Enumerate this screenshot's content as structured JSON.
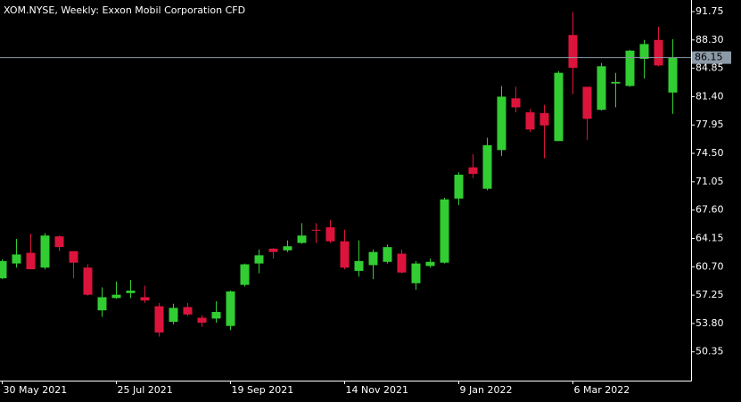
{
  "chart_data": {
    "type": "candlestick",
    "title": "XOM.NYSE, Weekly:  Exxon Mobil Corporation CFD",
    "categories": [
      "30 May 2021",
      null,
      null,
      null,
      null,
      null,
      null,
      null,
      "25 Jul 2021",
      null,
      null,
      null,
      null,
      null,
      null,
      null,
      "19 Sep 2021",
      null,
      null,
      null,
      null,
      null,
      null,
      null,
      "14 Nov 2021",
      null,
      null,
      null,
      null,
      null,
      null,
      null,
      "9 Jan 2022",
      null,
      null,
      null,
      null,
      null,
      null,
      null,
      "6 Mar 2022",
      null,
      null,
      null,
      null,
      null,
      null,
      null
    ],
    "open": [
      59.3,
      61.1,
      62.4,
      60.6,
      64.4,
      62.6,
      60.6,
      55.4,
      56.9,
      57.5,
      57.0,
      55.9,
      54.0,
      55.8,
      54.5,
      54.4,
      53.5,
      58.5,
      61.1,
      62.9,
      62.7,
      63.6,
      65.2,
      65.5,
      63.8,
      60.2,
      60.9,
      61.3,
      62.3,
      58.7,
      60.8,
      61.2,
      69.0,
      72.8,
      70.2,
      74.9,
      81.2,
      79.5,
      79.4,
      76.0,
      88.9,
      82.6,
      79.8,
      83.0,
      82.7,
      86.0,
      88.3,
      81.9
    ],
    "high": [
      61.6,
      64.1,
      64.7,
      64.8,
      64.5,
      62.6,
      61.0,
      58.2,
      58.9,
      59.1,
      58.4,
      56.3,
      56.2,
      56.3,
      54.8,
      56.5,
      57.8,
      61.1,
      62.8,
      63.0,
      63.9,
      66.0,
      66.0,
      66.4,
      65.2,
      63.9,
      62.8,
      63.4,
      62.8,
      61.4,
      61.7,
      69.1,
      72.2,
      74.4,
      76.4,
      82.7,
      82.6,
      79.9,
      80.4,
      84.5,
      91.7,
      82.6,
      85.5,
      84.3,
      87.1,
      88.3,
      89.9,
      88.4
    ],
    "low": [
      59.2,
      60.6,
      60.4,
      60.4,
      62.6,
      59.3,
      57.2,
      54.6,
      56.8,
      56.9,
      56.3,
      52.2,
      53.7,
      54.7,
      53.4,
      53.9,
      53.0,
      58.3,
      59.9,
      61.7,
      62.5,
      63.5,
      63.6,
      63.6,
      60.4,
      59.5,
      59.2,
      61.1,
      59.9,
      57.9,
      60.6,
      61.1,
      68.2,
      71.5,
      70.0,
      74.2,
      79.5,
      77.1,
      73.9,
      76.0,
      81.7,
      76.1,
      79.7,
      80.1,
      82.6,
      83.6,
      85.1,
      79.3
    ],
    "close": [
      61.4,
      62.2,
      60.4,
      64.5,
      63.1,
      61.2,
      57.3,
      57.0,
      57.3,
      57.8,
      56.6,
      52.7,
      55.7,
      54.9,
      53.9,
      55.2,
      57.7,
      61.0,
      62.1,
      62.5,
      63.2,
      64.5,
      65.1,
      63.8,
      60.6,
      61.4,
      62.5,
      63.1,
      60.0,
      61.1,
      61.3,
      68.9,
      71.9,
      72.0,
      75.5,
      81.4,
      80.1,
      77.4,
      77.9,
      84.3,
      84.9,
      78.7,
      85.1,
      83.2,
      87.0,
      87.8,
      85.2,
      86.15
    ],
    "up_color": "#32cd32",
    "down_color": "#dc143c",
    "last_price": 86.15,
    "ylim": [
      46.85,
      93.16
    ],
    "yticks": [
      {
        "value": 50.35,
        "label": "50.35"
      },
      {
        "value": 53.8,
        "label": "53.80"
      },
      {
        "value": 57.25,
        "label": "57.25"
      },
      {
        "value": 60.7,
        "label": "60.70"
      },
      {
        "value": 64.15,
        "label": "64.15"
      },
      {
        "value": 67.6,
        "label": "67.60"
      },
      {
        "value": 71.05,
        "label": "71.05"
      },
      {
        "value": 74.5,
        "label": "74.50"
      },
      {
        "value": 77.95,
        "label": "77.95"
      },
      {
        "value": 81.4,
        "label": "81.40"
      },
      {
        "value": 84.85,
        "label": "84.85"
      },
      {
        "value": 88.3,
        "label": "88.30"
      },
      {
        "value": 91.75,
        "label": "91.75"
      }
    ]
  }
}
